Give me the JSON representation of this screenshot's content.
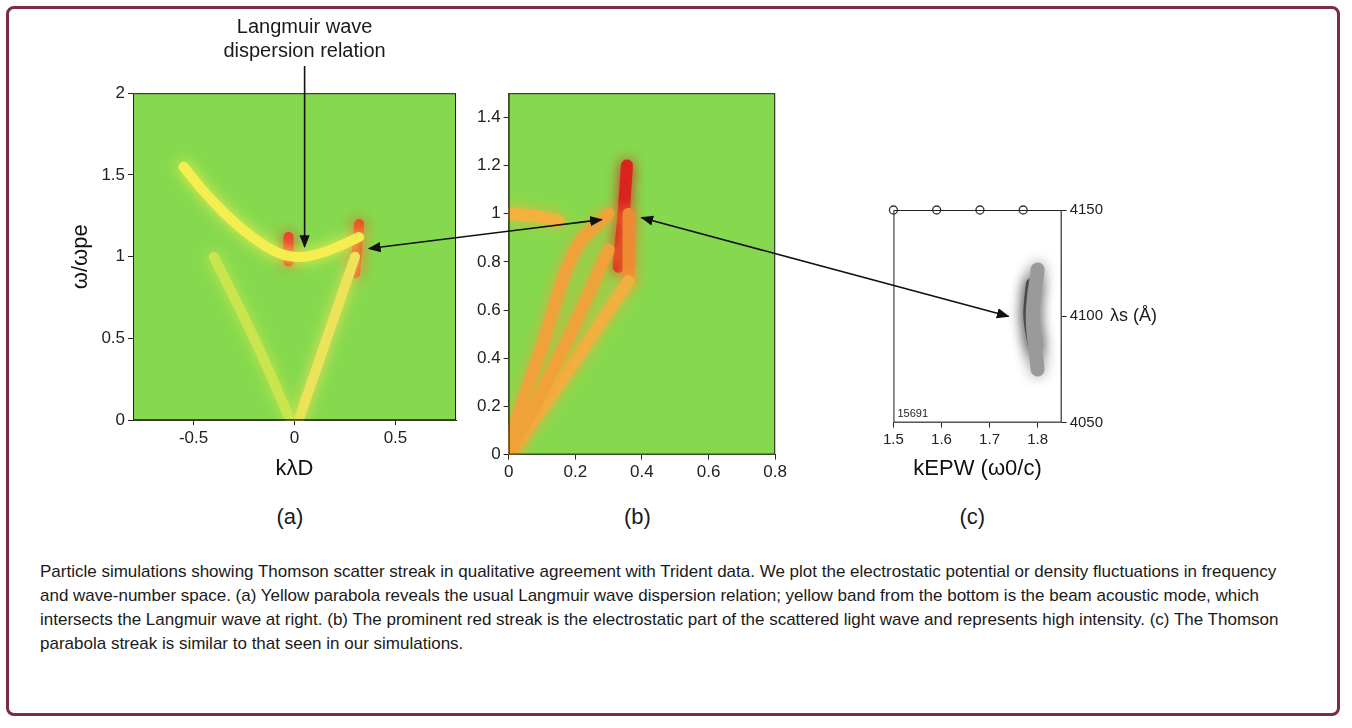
{
  "caption": "Particle simulations showing Thomson scatter streak in qualitative agreement with Trident data. We plot the electrostatic potential or density fluctuations in frequency and wave-number space. (a) Yellow parabola reveals the usual Langmuir wave dispersion relation; yellow band from the bottom is the beam acoustic mode, which intersects the Langmuir wave at right. (b) The prominent red streak is the electrostatic part of the scattered light wave and represents high intensity. (c) The Thomson parabola streak is similar to that seen in our simulations.",
  "chart_data": [
    {
      "type": "line",
      "label": "(a)",
      "annotation": "Langmuir wave dispersion relation",
      "xlabel": "kλD",
      "ylabel": "ω/ωpe",
      "xlim": [
        -0.8,
        0.8
      ],
      "xticks": [
        -0.5,
        0,
        0.5
      ],
      "ylim": [
        0,
        2
      ],
      "yticks": [
        0,
        0.5,
        1,
        1.5,
        2
      ],
      "series": [
        {
          "color": "#f4ee50",
          "x": [
            -0.55,
            -0.45,
            -0.35,
            -0.25,
            -0.15,
            -0.05,
            0.05,
            0.15,
            0.25,
            0.32
          ],
          "values": [
            1.55,
            1.4,
            1.27,
            1.16,
            1.07,
            1.01,
            1.0,
            1.03,
            1.08,
            1.12
          ]
        },
        {
          "color": "#c9e64e",
          "x": [
            -0.02,
            -0.2,
            -0.4
          ],
          "values": [
            0,
            0.5,
            1.0
          ]
        },
        {
          "color": "#ece35a",
          "x": [
            0.02,
            0.16,
            0.3
          ],
          "values": [
            0,
            0.5,
            1.0
          ]
        },
        {
          "color": "#e8462c",
          "x": [
            -0.03,
            -0.03
          ],
          "values": [
            0.97,
            1.12
          ]
        },
        {
          "color": "#e8502a",
          "x": [
            0.3,
            0.31,
            0.32
          ],
          "values": [
            0.9,
            1.05,
            1.2
          ]
        }
      ]
    },
    {
      "type": "line",
      "label": "(b)",
      "xlim": [
        0,
        0.8
      ],
      "xticks": [
        0,
        0.2,
        0.4,
        0.6,
        0.8
      ],
      "ylim": [
        0,
        1.5
      ],
      "yticks": [
        0,
        0.2,
        0.4,
        0.6,
        0.8,
        1,
        1.2,
        1.4
      ],
      "series": [
        {
          "color": "#f2b23c",
          "x": [
            0,
            0.08,
            0.15
          ],
          "values": [
            1.0,
            0.99,
            0.97
          ]
        },
        {
          "color": "#f0a23a",
          "x": [
            0,
            0.1,
            0.2,
            0.3
          ],
          "values": [
            0.05,
            0.45,
            0.85,
            1.0
          ]
        },
        {
          "color": "#f0a23a",
          "x": [
            0,
            0.15,
            0.3
          ],
          "values": [
            0,
            0.4,
            0.85
          ]
        },
        {
          "color": "#f0b040",
          "x": [
            0,
            0.18,
            0.36
          ],
          "values": [
            0,
            0.35,
            0.72
          ]
        },
        {
          "color": "#ef8a34",
          "x": [
            0.36,
            0.36
          ],
          "values": [
            0.72,
            1.0
          ]
        },
        {
          "color": "#d9231d",
          "x": [
            0.33,
            0.345,
            0.355
          ],
          "values": [
            0.78,
            1.0,
            1.2
          ]
        }
      ]
    },
    {
      "type": "line",
      "label": "(c)",
      "annotation": "15691",
      "xlabel": "kEPW (ω0/c)",
      "y2label": "λs (Å)",
      "xlim": [
        1.5,
        1.85
      ],
      "xticks": [
        1.5,
        1.6,
        1.7,
        1.8
      ],
      "y2lim": [
        4050,
        4150
      ],
      "y2ticks": [
        4050,
        4100,
        4150
      ],
      "series": [
        {
          "type": "scatter",
          "marker": "circle",
          "axis": "y2",
          "color": "#333333",
          "x": [
            1.5,
            1.59,
            1.68,
            1.77
          ],
          "values": [
            4150,
            4150,
            4150,
            4150
          ]
        },
        {
          "axis": "y2",
          "color": "#9a9a9a",
          "x": [
            1.8,
            1.79,
            1.8
          ],
          "values": [
            4075,
            4100,
            4122
          ]
        },
        {
          "axis": "y2",
          "color": "#151515",
          "x": [
            1.795,
            1.785,
            1.79
          ],
          "values": [
            4085,
            4100,
            4115
          ]
        }
      ]
    }
  ]
}
